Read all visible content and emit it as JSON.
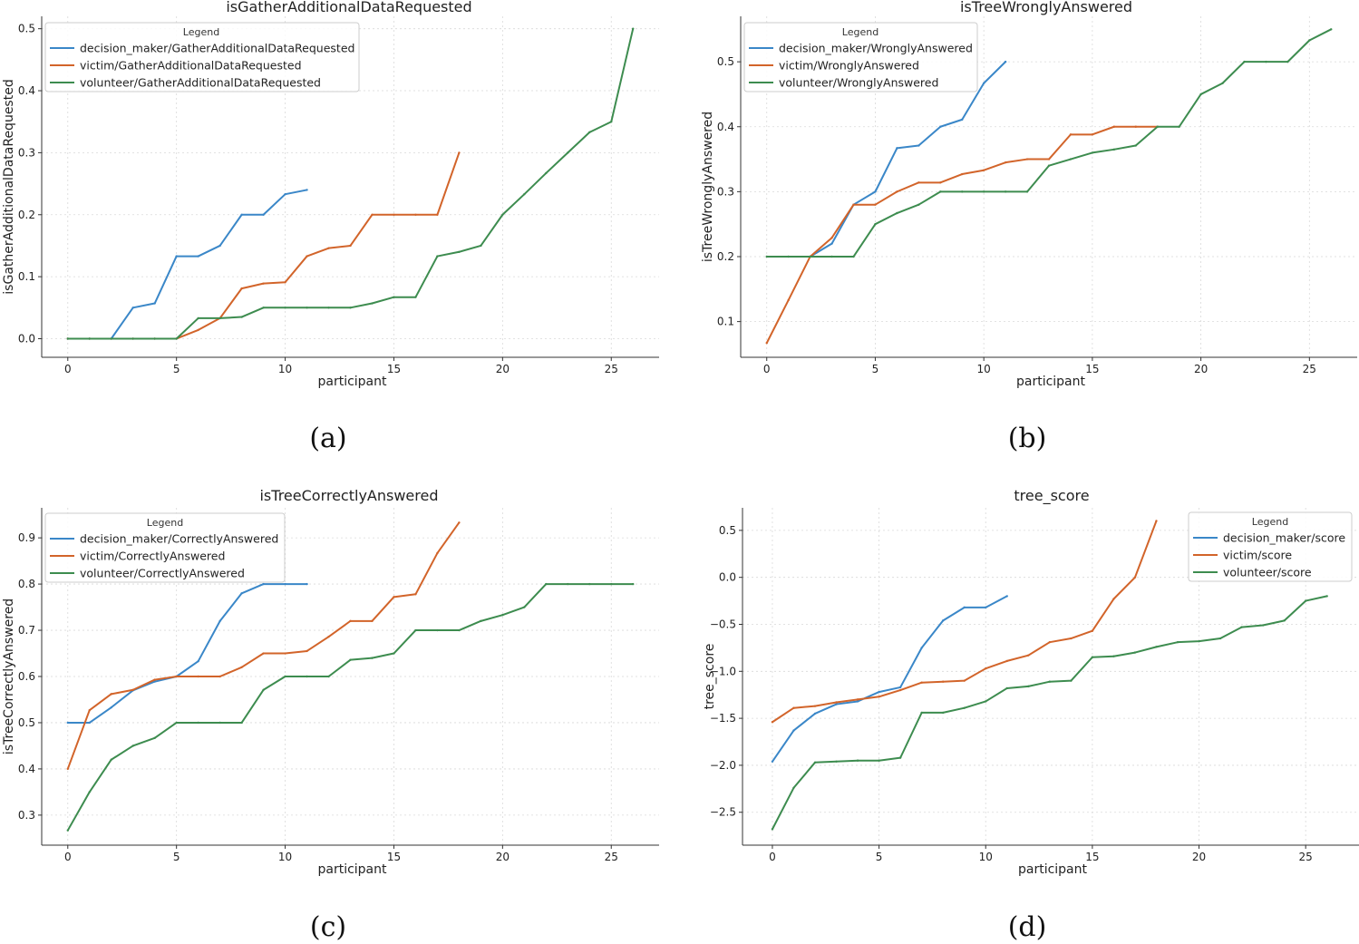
{
  "colors": {
    "decision_maker": "#3a87c8",
    "victim": "#d2642a",
    "volunteer": "#3d8c4f"
  },
  "chart_data": [
    {
      "type": "line",
      "title": "isGatherAdditionalDataRequested",
      "xlabel": "participant",
      "ylabel": "isGatherAdditionalDataRequested",
      "caption": "(a)",
      "legend_title": "Legend",
      "legend_position": "top-left",
      "xlim": [
        -1.2,
        27.2
      ],
      "ylim": [
        -0.03,
        0.52
      ],
      "xticks": [
        0,
        5,
        10,
        15,
        20,
        25
      ],
      "yticks": [
        0.0,
        0.1,
        0.2,
        0.3,
        0.4,
        0.5
      ],
      "ytick_labels": [
        "0.0",
        "0.1",
        "0.2",
        "0.3",
        "0.4",
        "0.5"
      ],
      "series": [
        {
          "name": "decision_maker/GatherAdditionalDataRequested",
          "color_key": "decision_maker",
          "values": [
            0,
            0,
            0,
            0.05,
            0.057,
            0.133,
            0.133,
            0.15,
            0.2,
            0.2,
            0.233,
            0.24
          ]
        },
        {
          "name": "victim/GatherAdditionalDataRequested",
          "color_key": "victim",
          "values": [
            0,
            0,
            0,
            0,
            0,
            0,
            0.014,
            0.033,
            0.081,
            0.089,
            0.091,
            0.133,
            0.146,
            0.15,
            0.2,
            0.2,
            0.2,
            0.2,
            0.3
          ]
        },
        {
          "name": "volunteer/GatherAdditionalDataRequested",
          "color_key": "volunteer",
          "values": [
            0,
            0,
            0,
            0,
            0,
            0,
            0.033,
            0.033,
            0.035,
            0.05,
            0.05,
            0.05,
            0.05,
            0.05,
            0.057,
            0.067,
            0.067,
            0.133,
            0.14,
            0.15,
            0.2,
            0.233,
            0.267,
            0.3,
            0.333,
            0.35,
            0.5
          ]
        }
      ]
    },
    {
      "type": "line",
      "title": "isTreeWronglyAnswered",
      "xlabel": "participant",
      "ylabel": "isTreeWronglyAnswered",
      "caption": "(b)",
      "legend_title": "Legend",
      "legend_position": "top-left",
      "xlim": [
        -1.2,
        27.2
      ],
      "ylim": [
        0.045,
        0.57
      ],
      "xticks": [
        0,
        5,
        10,
        15,
        20,
        25
      ],
      "yticks": [
        0.1,
        0.2,
        0.3,
        0.4,
        0.5
      ],
      "ytick_labels": [
        "0.1",
        "0.2",
        "0.3",
        "0.4",
        "0.5"
      ],
      "series": [
        {
          "name": "decision_maker/WronglyAnswered",
          "color_key": "decision_maker",
          "values": [
            null,
            null,
            0.2,
            0.22,
            0.28,
            0.3,
            0.367,
            0.371,
            0.4,
            0.411,
            0.467,
            0.5
          ]
        },
        {
          "name": "victim/WronglyAnswered",
          "color_key": "victim",
          "values": [
            0.067,
            0.133,
            0.2,
            0.229,
            0.28,
            0.28,
            0.3,
            0.314,
            0.314,
            0.327,
            0.333,
            0.345,
            0.35,
            0.35,
            0.388,
            0.388,
            0.4,
            0.4,
            0.4
          ]
        },
        {
          "name": "volunteer/WronglyAnswered",
          "color_key": "volunteer",
          "values": [
            0.2,
            0.2,
            0.2,
            0.2,
            0.2,
            0.25,
            0.267,
            0.28,
            0.3,
            0.3,
            0.3,
            0.3,
            0.3,
            0.34,
            0.35,
            0.36,
            0.365,
            0.371,
            0.4,
            0.4,
            0.45,
            0.467,
            0.5,
            0.5,
            0.5,
            0.533,
            0.55
          ]
        }
      ]
    },
    {
      "type": "line",
      "title": "isTreeCorrectlyAnswered",
      "xlabel": "participant",
      "ylabel": "isTreeCorrectlyAnswered",
      "caption": "(c)",
      "legend_title": "Legend",
      "legend_position": "top-left",
      "xlim": [
        -1.2,
        27.2
      ],
      "ylim": [
        0.235,
        0.965
      ],
      "xticks": [
        0,
        5,
        10,
        15,
        20,
        25
      ],
      "yticks": [
        0.3,
        0.4,
        0.5,
        0.6,
        0.7,
        0.8,
        0.9
      ],
      "ytick_labels": [
        "0.3",
        "0.4",
        "0.5",
        "0.6",
        "0.7",
        "0.8",
        "0.9"
      ],
      "series": [
        {
          "name": "decision_maker/CorrectlyAnswered",
          "color_key": "decision_maker",
          "values": [
            0.5,
            0.5,
            0.533,
            0.57,
            0.589,
            0.6,
            0.633,
            0.72,
            0.78,
            0.8,
            0.8,
            0.8
          ]
        },
        {
          "name": "victim/CorrectlyAnswered",
          "color_key": "victim",
          "values": [
            0.4,
            0.527,
            0.562,
            0.571,
            0.593,
            0.6,
            0.6,
            0.6,
            0.62,
            0.65,
            0.65,
            0.655,
            0.686,
            0.72,
            0.72,
            0.772,
            0.778,
            0.867,
            0.933
          ]
        },
        {
          "name": "volunteer/CorrectlyAnswered",
          "color_key": "volunteer",
          "values": [
            0.267,
            0.35,
            0.42,
            0.45,
            0.467,
            0.5,
            0.5,
            0.5,
            0.5,
            0.571,
            0.6,
            0.6,
            0.6,
            0.636,
            0.64,
            0.65,
            0.7,
            0.7,
            0.7,
            0.72,
            0.733,
            0.75,
            0.8,
            0.8,
            0.8,
            0.8,
            0.8
          ]
        }
      ]
    },
    {
      "type": "line",
      "title": "tree_score",
      "xlabel": "participant",
      "ylabel": "tree_score",
      "caption": "(d)",
      "legend_title": "Legend",
      "legend_position": "top-right",
      "xlim": [
        -1.4,
        27.5
      ],
      "ylim": [
        -2.85,
        0.74
      ],
      "xticks": [
        0,
        5,
        10,
        15,
        20,
        25
      ],
      "yticks": [
        -2.5,
        -2.0,
        -1.5,
        -1.0,
        -0.5,
        0.0,
        0.5
      ],
      "ytick_labels": [
        "−2.5",
        "−2.0",
        "−1.5",
        "−1.0",
        "−0.5",
        "0.0",
        "0.5"
      ],
      "series": [
        {
          "name": "decision_maker/score",
          "color_key": "decision_maker",
          "values": [
            -1.96,
            -1.63,
            -1.45,
            -1.35,
            -1.32,
            -1.22,
            -1.17,
            -0.75,
            -0.46,
            -0.32,
            -0.32,
            -0.2
          ]
        },
        {
          "name": "victim/score",
          "color_key": "victim",
          "values": [
            -1.54,
            -1.39,
            -1.37,
            -1.33,
            -1.3,
            -1.27,
            -1.2,
            -1.12,
            -1.11,
            -1.1,
            -0.97,
            -0.89,
            -0.83,
            -0.69,
            -0.65,
            -0.57,
            -0.23,
            0.0,
            0.6
          ]
        },
        {
          "name": "volunteer/score",
          "color_key": "volunteer",
          "values": [
            -2.68,
            -2.24,
            -1.97,
            -1.96,
            -1.95,
            -1.95,
            -1.92,
            -1.44,
            -1.44,
            -1.39,
            -1.32,
            -1.18,
            -1.16,
            -1.11,
            -1.1,
            -0.85,
            -0.84,
            -0.8,
            -0.74,
            -0.69,
            -0.68,
            -0.65,
            -0.53,
            -0.51,
            -0.46,
            -0.25,
            -0.2
          ]
        }
      ]
    }
  ]
}
